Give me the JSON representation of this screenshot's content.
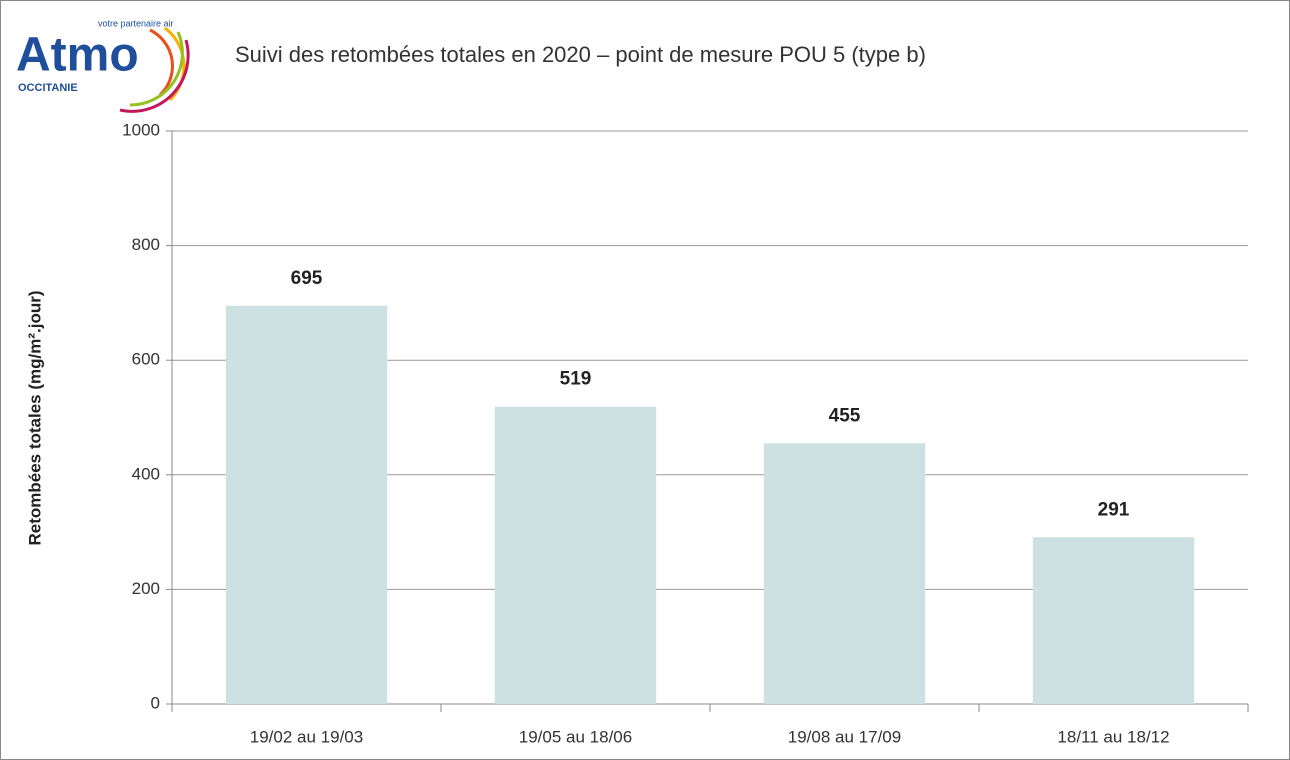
{
  "logo": {
    "name": "Atmo",
    "tagline": "votre partenaire air",
    "region": "OCCITANIE"
  },
  "chart_data": {
    "type": "bar",
    "title": "Suivi des retombées totales en 2020 – point de mesure POU 5 (type b)",
    "y_label": "Retombées totales (mg/m².jour)",
    "categories": [
      "19/02 au 19/03",
      "19/05 au 18/06",
      "19/08 au 17/09",
      "18/11 au 18/12"
    ],
    "values": [
      695,
      519,
      455,
      291
    ],
    "color": "#cde0e2",
    "ylim": [
      0,
      1000
    ],
    "yticks": [
      0,
      200,
      400,
      600,
      800,
      1000
    ],
    "grid": true
  }
}
